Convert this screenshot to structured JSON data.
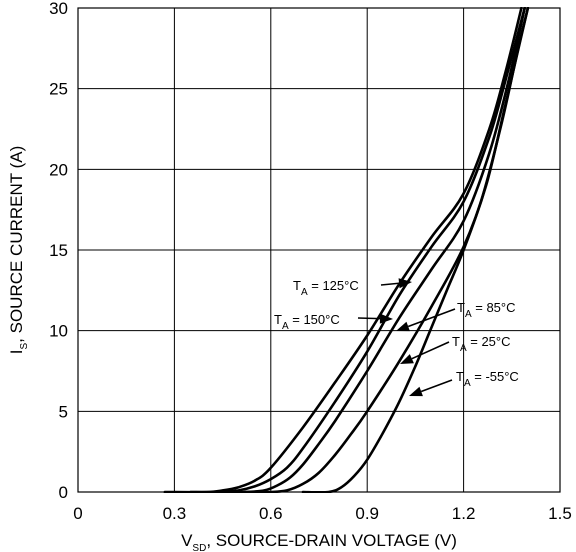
{
  "chart_data": {
    "type": "line",
    "title": "",
    "xlabel": {
      "main": "V",
      "sub": "SD",
      "rest": ", SOURCE-DRAIN VOLTAGE (V)"
    },
    "ylabel": {
      "main": "I",
      "sub": "S",
      "rest": ", SOURCE CURRENT (A)"
    },
    "xlim": [
      0,
      1.5
    ],
    "ylim": [
      0,
      30
    ],
    "xticks": [
      0,
      0.3,
      0.6,
      0.9,
      1.2,
      1.5
    ],
    "xtick_labels": [
      "0",
      "0.3",
      "0.6",
      "0.9",
      "1.2",
      "1.5"
    ],
    "yticks": [
      0,
      5,
      10,
      15,
      20,
      25,
      30
    ],
    "ytick_labels": [
      "0",
      "5",
      "10",
      "15",
      "20",
      "25",
      "30"
    ],
    "grid": true,
    "series": [
      {
        "name": "T_A = 150°C",
        "x": [
          0.27,
          0.4,
          0.45,
          0.5,
          0.55,
          0.6,
          0.7,
          0.8,
          0.9,
          1.0,
          1.1,
          1.2,
          1.28,
          1.33,
          1.38
        ],
        "y": [
          0,
          0,
          0.1,
          0.3,
          0.7,
          1.5,
          4.0,
          6.8,
          9.7,
          12.9,
          15.8,
          18.5,
          22.5,
          26.0,
          30.0
        ]
      },
      {
        "name": "T_A = 125°C",
        "x": [
          0.35,
          0.44,
          0.5,
          0.55,
          0.6,
          0.65,
          0.7,
          0.8,
          0.9,
          1.0,
          1.1,
          1.2,
          1.28,
          1.33,
          1.39
        ],
        "y": [
          0,
          0,
          0.1,
          0.35,
          0.8,
          1.5,
          2.7,
          5.6,
          8.7,
          12.2,
          15.2,
          18.0,
          22.0,
          25.5,
          30.0
        ]
      },
      {
        "name": "T_A = 85°C",
        "x": [
          0.42,
          0.52,
          0.58,
          0.62,
          0.66,
          0.7,
          0.75,
          0.8,
          0.9,
          1.0,
          1.1,
          1.2,
          1.28,
          1.34,
          1.39
        ],
        "y": [
          0,
          0,
          0.1,
          0.4,
          0.9,
          1.7,
          3.0,
          4.4,
          7.5,
          10.8,
          13.8,
          16.8,
          21.0,
          25.5,
          30.0
        ]
      },
      {
        "name": "T_A = 25°C",
        "x": [
          0.52,
          0.6,
          0.65,
          0.7,
          0.75,
          0.8,
          0.85,
          0.9,
          1.0,
          1.1,
          1.2,
          1.27,
          1.33,
          1.4
        ],
        "y": [
          0,
          0,
          0.1,
          0.5,
          1.2,
          2.3,
          3.6,
          5.0,
          8.1,
          11.5,
          15.2,
          19.0,
          24.0,
          30.0
        ]
      },
      {
        "name": "T_A = -55°C",
        "x": [
          0.7,
          0.78,
          0.82,
          0.86,
          0.9,
          0.95,
          1.0,
          1.05,
          1.1,
          1.15,
          1.2,
          1.26,
          1.32,
          1.37,
          1.4
        ],
        "y": [
          0,
          0,
          0.3,
          1.0,
          2.0,
          3.7,
          5.6,
          7.8,
          10.2,
          12.6,
          15.0,
          18.4,
          23.0,
          27.5,
          30.0
        ]
      }
    ],
    "annotations": [
      {
        "pre": "T",
        "sub": "A",
        "post": " = 125°C",
        "series": "T_A = 125°C"
      },
      {
        "pre": "T",
        "sub": "A",
        "post": " = 150°C",
        "series": "T_A = 150°C"
      },
      {
        "pre": "T",
        "sub": "A",
        "post": " = 85°C",
        "series": "T_A = 85°C"
      },
      {
        "pre": "T",
        "sub": "A",
        "post": " = 25°C",
        "series": "T_A = 25°C"
      },
      {
        "pre": "T",
        "sub": "A",
        "post": " = -55°C",
        "series": "T_A = -55°C"
      }
    ]
  }
}
